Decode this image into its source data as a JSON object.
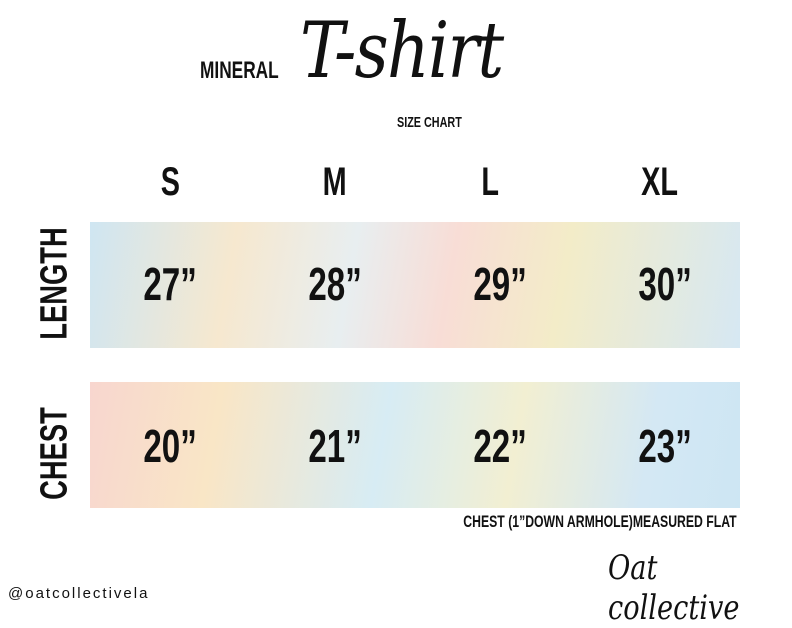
{
  "header": {
    "brand": "MINERAL",
    "title": "T-shirt",
    "subtitle": "SIZE CHART"
  },
  "sizes": [
    "S",
    "M",
    "L",
    "XL"
  ],
  "rows": [
    {
      "label": "LENGTH",
      "values": [
        "27”",
        "28”",
        "29”",
        "30”"
      ]
    },
    {
      "label": "CHEST",
      "values": [
        "20”",
        "21”",
        "22”",
        "23”"
      ]
    }
  ],
  "note": "CHEST (1”DOWN ARMHOLE)MEASURED FLAT",
  "footer": {
    "handle": "@oatcollectivela",
    "logo": "Oat collective"
  },
  "colors": {
    "text": "#111111",
    "band_blue": "#cfe6f2",
    "band_peach": "#f8ddd6",
    "band_yellow": "#f6e8cf"
  }
}
